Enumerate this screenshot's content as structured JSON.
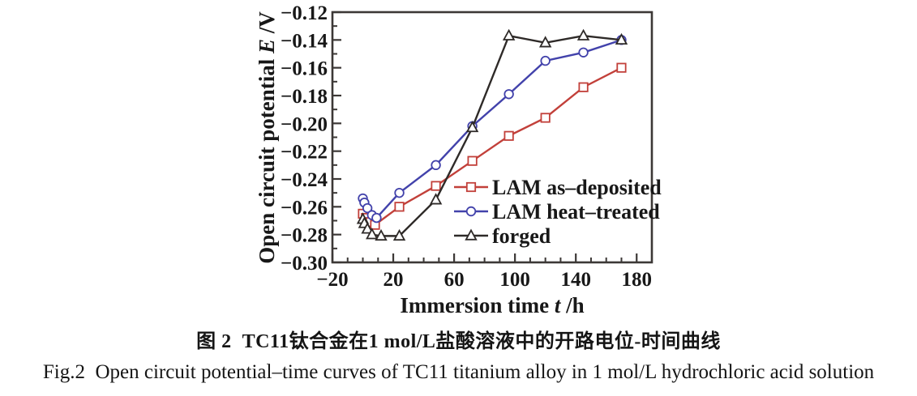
{
  "figure": {
    "caption_zh": "图 2  TC11钛合金在1 mol/L盐酸溶液中的开路电位-时间曲线",
    "caption_en": "Fig.2  Open circuit potential–time curves of TC11 titanium alloy in 1 mol/L hydrochloric acid solution"
  },
  "chart_data": {
    "type": "line",
    "title": "",
    "xlabel": {
      "prefix": "Immersion time ",
      "symbol": "t",
      "suffix": " /h"
    },
    "ylabel": {
      "prefix": "Open circuit potential ",
      "symbol": "E",
      "suffix": " /V"
    },
    "xlim": [
      -20,
      190
    ],
    "ylim": [
      -0.3,
      -0.12
    ],
    "x_major_ticks": [
      -20,
      20,
      60,
      100,
      140,
      180
    ],
    "x_tick_labels": [
      "−20",
      "20",
      "60",
      "100",
      "140",
      "180"
    ],
    "x_minor_step": 10,
    "y_major_ticks": [
      -0.12,
      -0.14,
      -0.16,
      -0.18,
      -0.2,
      -0.22,
      -0.24,
      -0.26,
      -0.28,
      -0.3
    ],
    "y_tick_labels": [
      "−0.12",
      "−0.14",
      "−0.16",
      "−0.18",
      "−0.20",
      "−0.22",
      "−0.24",
      "−0.26",
      "−0.28",
      "−0.30"
    ],
    "y_minor_step": 0.01,
    "grid": false,
    "legend_position": "inside lower right",
    "background_color": "#ffffff",
    "axis_color": "#3c3836",
    "text_color": "#181818",
    "series": [
      {
        "name": "LAM as–deposited",
        "marker": "square",
        "color": "#c2403a",
        "x": [
          0,
          2,
          5,
          8,
          24,
          48,
          72,
          96,
          120,
          145,
          170
        ],
        "y": [
          -0.265,
          -0.268,
          -0.271,
          -0.273,
          -0.26,
          -0.245,
          -0.227,
          -0.209,
          -0.196,
          -0.174,
          -0.16
        ]
      },
      {
        "name": "LAM heat–treated",
        "marker": "circle",
        "color": "#4242ab",
        "x": [
          0,
          1,
          3,
          6,
          9,
          24,
          48,
          72,
          96,
          120,
          145,
          170
        ],
        "y": [
          -0.254,
          -0.257,
          -0.261,
          -0.266,
          -0.268,
          -0.25,
          -0.23,
          -0.202,
          -0.179,
          -0.155,
          -0.149,
          -0.14
        ]
      },
      {
        "name": "forged",
        "marker": "triangle",
        "color": "#2e2a28",
        "x": [
          0,
          1,
          3,
          6,
          12,
          24,
          48,
          72,
          96,
          120,
          145,
          170
        ],
        "y": [
          -0.269,
          -0.272,
          -0.276,
          -0.28,
          -0.281,
          -0.281,
          -0.255,
          -0.203,
          -0.137,
          -0.142,
          -0.137,
          -0.14
        ]
      }
    ]
  }
}
